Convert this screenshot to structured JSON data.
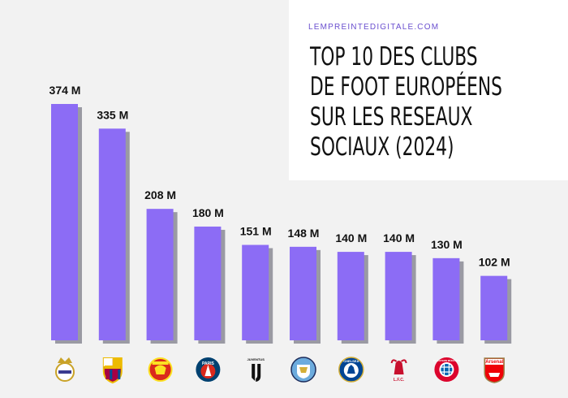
{
  "header": {
    "site": "LEMPREINTEDIGITALE.COM",
    "title_lines": [
      "TOP 10 DES CLUBS",
      "DE FOOT EUROPÉENS",
      "SUR LES RESEAUX",
      "SOCIAUX (2024)"
    ]
  },
  "chart_data": {
    "type": "bar",
    "title": "TOP 10 DES CLUBS DE FOOT EUROPÉENS SUR LES RESEAUX SOCIAUX (2024)",
    "categories": [
      "real-madrid",
      "fc-barcelona",
      "manchester-united",
      "paris-saint-germain",
      "juventus",
      "manchester-city",
      "chelsea",
      "liverpool",
      "bayern-munich",
      "arsenal"
    ],
    "values": [
      374,
      335,
      208,
      180,
      151,
      148,
      140,
      140,
      130,
      102
    ],
    "value_labels": [
      "374 M",
      "335 M",
      "208 M",
      "180 M",
      "151 M",
      "148 M",
      "140 M",
      "140 M",
      "130 M",
      "102 M"
    ],
    "logo_texts": [
      "",
      "",
      "",
      "PARIS",
      "JUVENTUS",
      "",
      "CHELSEA",
      "L.F.C.",
      "FC BAYERN MÜNCHEN",
      "Arsenal"
    ],
    "bar_color": "#8c6cf5",
    "shadow_color": "#9a9aa3",
    "xlabel": "",
    "ylabel": "",
    "grid": false,
    "legend": "none",
    "ylim": [
      0,
      374
    ]
  }
}
